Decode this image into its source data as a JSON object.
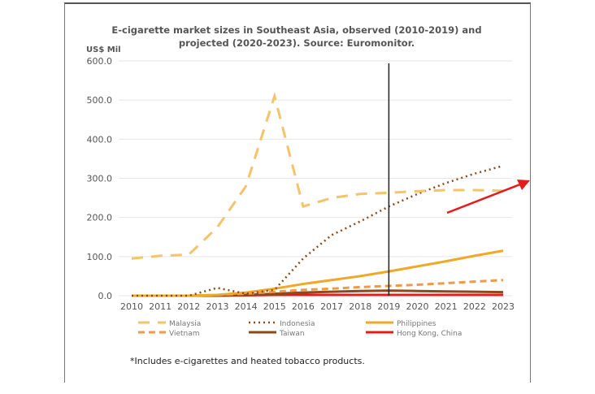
{
  "chart_data": {
    "type": "line",
    "title": "E-cigarette market sizes in Southeast Asia, observed (2010-2019) and projected (2020-2023). Source: Euromonitor.",
    "title_lines": [
      "E-cigarette market sizes in Southeast Asia, observed (2010-2019) and",
      "projected (2020-2023). Source: Euromonitor."
    ],
    "ylabel": "US$ Mil",
    "ylim": [
      0,
      600
    ],
    "yticks": [
      "0.0",
      "100.0",
      "200.0",
      "300.0",
      "400.0",
      "500.0",
      "600.0"
    ],
    "x": [
      "2010",
      "2011",
      "2012",
      "2013",
      "2014",
      "2015",
      "2016",
      "2017",
      "2018",
      "2019",
      "2020",
      "2021",
      "2022",
      "2023"
    ],
    "divider_year": "2019",
    "legend_placement": "bottom",
    "series": [
      {
        "name": "Malaysia",
        "color": "#f5c36a",
        "style": "longdash",
        "values": [
          95,
          102,
          105,
          175,
          280,
          510,
          228,
          250,
          260,
          263,
          267,
          270,
          270,
          268
        ]
      },
      {
        "name": "Indonesia",
        "color": "#8b4a1c",
        "style": "dotted",
        "values": [
          0,
          0,
          0,
          20,
          5,
          15,
          95,
          155,
          190,
          228,
          260,
          288,
          312,
          332
        ]
      },
      {
        "name": "Philippines",
        "color": "#f0a828",
        "style": "solid",
        "values": [
          0,
          0,
          0,
          2,
          8,
          18,
          30,
          40,
          50,
          62,
          75,
          88,
          102,
          115
        ]
      },
      {
        "name": "Vietnam",
        "color": "#ee9a4a",
        "style": "dash",
        "values": [
          0,
          0,
          0,
          2,
          5,
          10,
          15,
          18,
          22,
          25,
          28,
          32,
          36,
          40
        ]
      },
      {
        "name": "Taiwan",
        "color": "#8b4a1c",
        "style": "solid",
        "values": [
          0,
          0,
          0,
          1,
          2,
          5,
          8,
          10,
          12,
          13,
          12,
          11,
          10,
          9
        ]
      },
      {
        "name": "Hong Kong, China",
        "color": "#e41c1c",
        "style": "solid",
        "values": [
          0,
          0,
          0,
          0,
          1,
          2,
          2,
          2,
          2,
          2,
          2,
          2,
          2,
          2
        ]
      }
    ],
    "footnote": "*Includes e-cigarettes and heated tobacco products."
  }
}
